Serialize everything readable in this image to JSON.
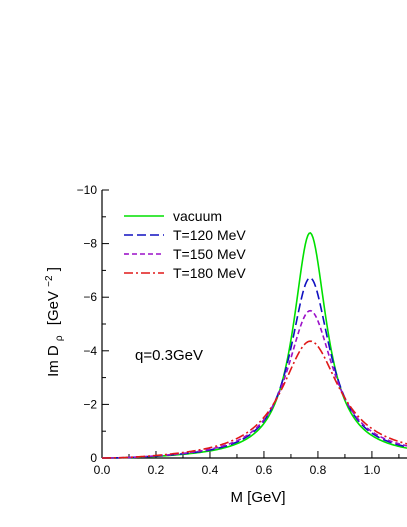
{
  "chart_data": {
    "type": "line",
    "xlabel": "M [GeV]",
    "ylabel": {
      "main": "Im D",
      "sub": "ρ",
      "unit_open": "[GeV",
      "unit_sup": "−2",
      "unit_close": "]"
    },
    "annotation": "q=0.3GeV",
    "xlim": [
      0.0,
      1.13
    ],
    "ylim": [
      0,
      -10
    ],
    "x_ticks": [
      0.0,
      0.2,
      0.4,
      0.6,
      0.8,
      1.0
    ],
    "x_tick_labels": [
      "0.0",
      "0.2",
      "0.4",
      "0.6",
      "0.8",
      "1.0"
    ],
    "y_ticks": [
      0,
      -2,
      -4,
      -6,
      -8,
      -10
    ],
    "y_tick_labels": [
      "0",
      "−2",
      "−4",
      "−6",
      "−8",
      "−10"
    ],
    "grid": false,
    "legend_position": "top-left",
    "series": [
      {
        "name": "vacuum",
        "color": "#00e000",
        "dash": "solid",
        "peak_x": 0.77,
        "peak_y": -9.25,
        "width": 0.15,
        "x": [
          0.0,
          0.2,
          0.3,
          0.4,
          0.5,
          0.6,
          0.65,
          0.7,
          0.74,
          0.77,
          0.8,
          0.85,
          0.9,
          1.0,
          1.13
        ],
        "y": [
          0,
          -0.03,
          -0.08,
          -0.2,
          -0.45,
          -1.2,
          -2.2,
          -4.9,
          -8.5,
          -9.25,
          -8.3,
          -4.4,
          -2.2,
          -0.95,
          -0.5
        ]
      },
      {
        "name": "T=120 MeV",
        "color": "#1010c0",
        "dash": "long",
        "peak_x": 0.77,
        "peak_y": -7.4,
        "width": 0.18,
        "x": [
          0.0,
          0.2,
          0.3,
          0.4,
          0.5,
          0.6,
          0.65,
          0.7,
          0.74,
          0.77,
          0.8,
          0.85,
          0.9,
          1.0,
          1.13
        ],
        "y": [
          0,
          -0.04,
          -0.1,
          -0.28,
          -0.6,
          -1.45,
          -2.4,
          -4.7,
          -6.9,
          -7.4,
          -6.8,
          -4.3,
          -2.5,
          -1.15,
          -0.6
        ]
      },
      {
        "name": "T=150 MeV",
        "color": "#9b10c8",
        "dash": "short",
        "peak_x": 0.77,
        "peak_y": -6.05,
        "width": 0.21,
        "x": [
          0.0,
          0.2,
          0.3,
          0.4,
          0.5,
          0.6,
          0.65,
          0.7,
          0.74,
          0.77,
          0.8,
          0.85,
          0.9,
          1.0,
          1.13
        ],
        "y": [
          0,
          -0.05,
          -0.14,
          -0.38,
          -0.8,
          -1.75,
          -2.7,
          -4.4,
          -5.75,
          -6.05,
          -5.75,
          -4.2,
          -2.75,
          -1.35,
          -0.7
        ]
      },
      {
        "name": "T=180 MeV",
        "color": "#e01818",
        "dash": "dashdot",
        "peak_x": 0.77,
        "peak_y": -4.8,
        "width": 0.26,
        "x": [
          0.0,
          0.2,
          0.3,
          0.4,
          0.5,
          0.6,
          0.65,
          0.7,
          0.74,
          0.77,
          0.8,
          0.85,
          0.9,
          1.0,
          1.13
        ],
        "y": [
          0,
          -0.08,
          -0.22,
          -0.55,
          -1.1,
          -2.1,
          -3.0,
          -4.1,
          -4.7,
          -4.8,
          -4.65,
          -3.9,
          -3.0,
          -1.65,
          -0.85
        ]
      }
    ]
  }
}
